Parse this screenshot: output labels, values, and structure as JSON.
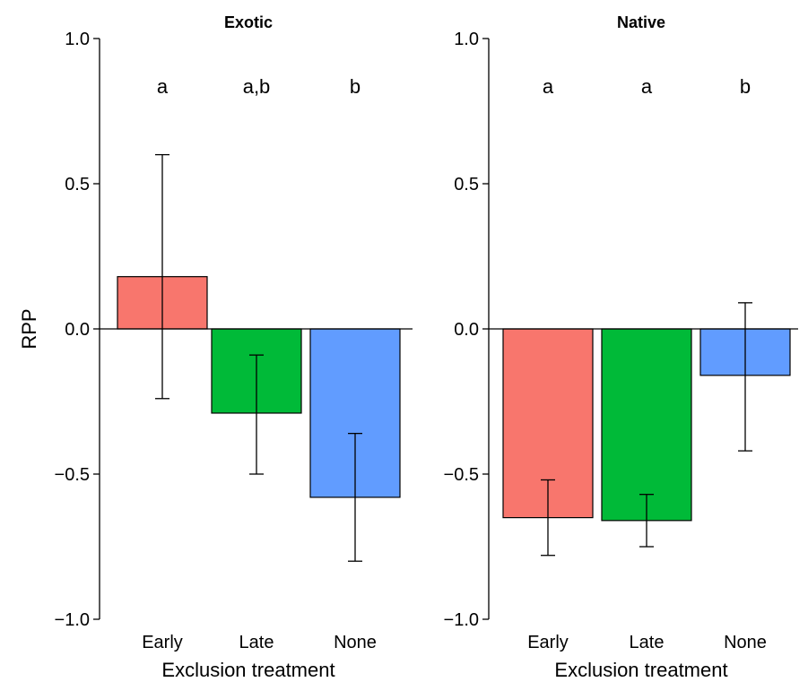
{
  "chart_data": {
    "type": "bar",
    "ylabel": "RPP",
    "xlabel": "Exclusion treatment",
    "ylim": [
      -1.0,
      1.0
    ],
    "yticks": [
      "1.0",
      "0.5",
      "0.0",
      "−0.5",
      "−1.0"
    ],
    "ytick_values": [
      1.0,
      0.5,
      0.0,
      -0.5,
      -1.0
    ],
    "categories": [
      "Early",
      "Late",
      "None"
    ],
    "colors": [
      "#f8766d",
      "#00ba38",
      "#619cff"
    ],
    "panels": [
      {
        "title": "Exotic",
        "values": [
          0.18,
          -0.29,
          -0.58
        ],
        "err_low": [
          -0.24,
          -0.5,
          -0.8
        ],
        "err_high": [
          0.6,
          -0.09,
          -0.36
        ],
        "letters": [
          "a",
          "a,b",
          "b"
        ]
      },
      {
        "title": "Native",
        "values": [
          -0.65,
          -0.66,
          -0.16
        ],
        "err_low": [
          -0.78,
          -0.75,
          -0.42
        ],
        "err_high": [
          -0.52,
          -0.57,
          0.09
        ],
        "letters": [
          "a",
          "a",
          "b"
        ]
      }
    ]
  }
}
